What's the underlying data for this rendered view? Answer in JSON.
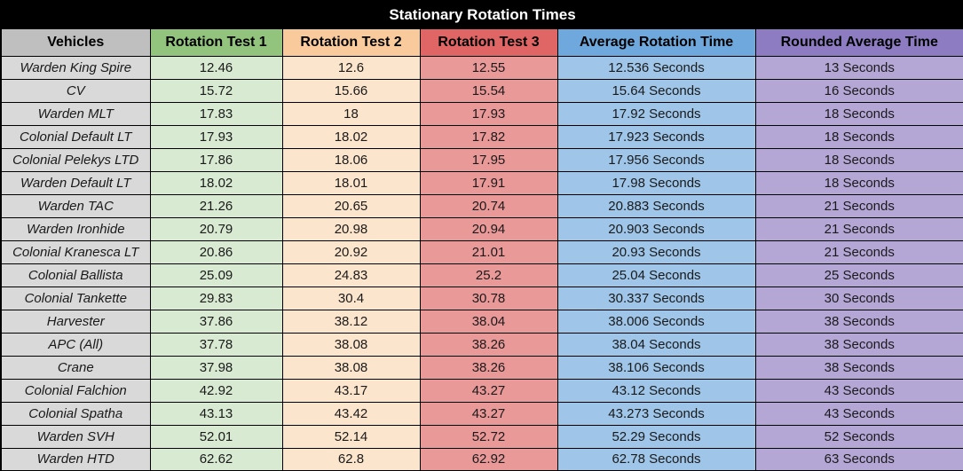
{
  "title": "Stationary Rotation Times",
  "colors": {
    "title_bg": "#000000",
    "title_text": "#FFFFFF",
    "border": "#000000",
    "header_vehicles": "#BFBFBF",
    "header_test1": "#93C47D",
    "header_test2": "#F9CB9C",
    "header_test3": "#E06666",
    "header_average": "#6FA8DC",
    "header_rounded": "#8E7CC3",
    "cell_vehicles": "#D9D9D9",
    "cell_test1": "#D9EAD3",
    "cell_test2": "#FCE5CD",
    "cell_test3": "#EA9999",
    "cell_average": "#9FC5E8",
    "cell_rounded": "#B4A7D6"
  },
  "chart_data": {
    "type": "table",
    "title": "Stationary Rotation Times",
    "columns": [
      "Vehicles",
      "Rotation Test 1",
      "Rotation Test 2",
      "Rotation Test 3",
      "Average Rotation Time",
      "Rounded Average Time"
    ],
    "rows": [
      [
        "Warden King Spire",
        "12.46",
        "12.6",
        "12.55",
        "12.536 Seconds",
        "13 Seconds"
      ],
      [
        "CV",
        "15.72",
        "15.66",
        "15.54",
        "15.64 Seconds",
        "16 Seconds"
      ],
      [
        "Warden MLT",
        "17.83",
        "18",
        "17.93",
        "17.92 Seconds",
        "18 Seconds"
      ],
      [
        "Colonial Default LT",
        "17.93",
        "18.02",
        "17.82",
        "17.923 Seconds",
        "18 Seconds"
      ],
      [
        "Colonial Pelekys LTD",
        "17.86",
        "18.06",
        "17.95",
        "17.956 Seconds",
        "18 Seconds"
      ],
      [
        "Warden Default LT",
        "18.02",
        "18.01",
        "17.91",
        "17.98 Seconds",
        "18 Seconds"
      ],
      [
        "Warden TAC",
        "21.26",
        "20.65",
        "20.74",
        "20.883 Seconds",
        "21 Seconds"
      ],
      [
        "Warden Ironhide",
        "20.79",
        "20.98",
        "20.94",
        "20.903 Seconds",
        "21 Seconds"
      ],
      [
        "Colonial Kranesca LT",
        "20.86",
        "20.92",
        "21.01",
        "20.93 Seconds",
        "21 Seconds"
      ],
      [
        "Colonial Ballista",
        "25.09",
        "24.83",
        "25.2",
        "25.04 Seconds",
        "25 Seconds"
      ],
      [
        "Colonial Tankette",
        "29.83",
        "30.4",
        "30.78",
        "30.337 Seconds",
        "30 Seconds"
      ],
      [
        "Harvester",
        "37.86",
        "38.12",
        "38.04",
        "38.006 Seconds",
        "38 Seconds"
      ],
      [
        "APC (All)",
        "37.78",
        "38.08",
        "38.26",
        "38.04 Seconds",
        "38 Seconds"
      ],
      [
        "Crane",
        "37.98",
        "38.08",
        "38.26",
        "38.106 Seconds",
        "38 Seconds"
      ],
      [
        "Colonial Falchion",
        "42.92",
        "43.17",
        "43.27",
        "43.12 Seconds",
        "43 Seconds"
      ],
      [
        "Colonial Spatha",
        "43.13",
        "43.42",
        "43.27",
        "43.273 Seconds",
        "43 Seconds"
      ],
      [
        "Warden SVH",
        "52.01",
        "52.14",
        "52.72",
        "52.29 Seconds",
        "52 Seconds"
      ],
      [
        "Warden HTD",
        "62.62",
        "62.8",
        "62.92",
        "62.78 Seconds",
        "63 Seconds"
      ]
    ]
  }
}
